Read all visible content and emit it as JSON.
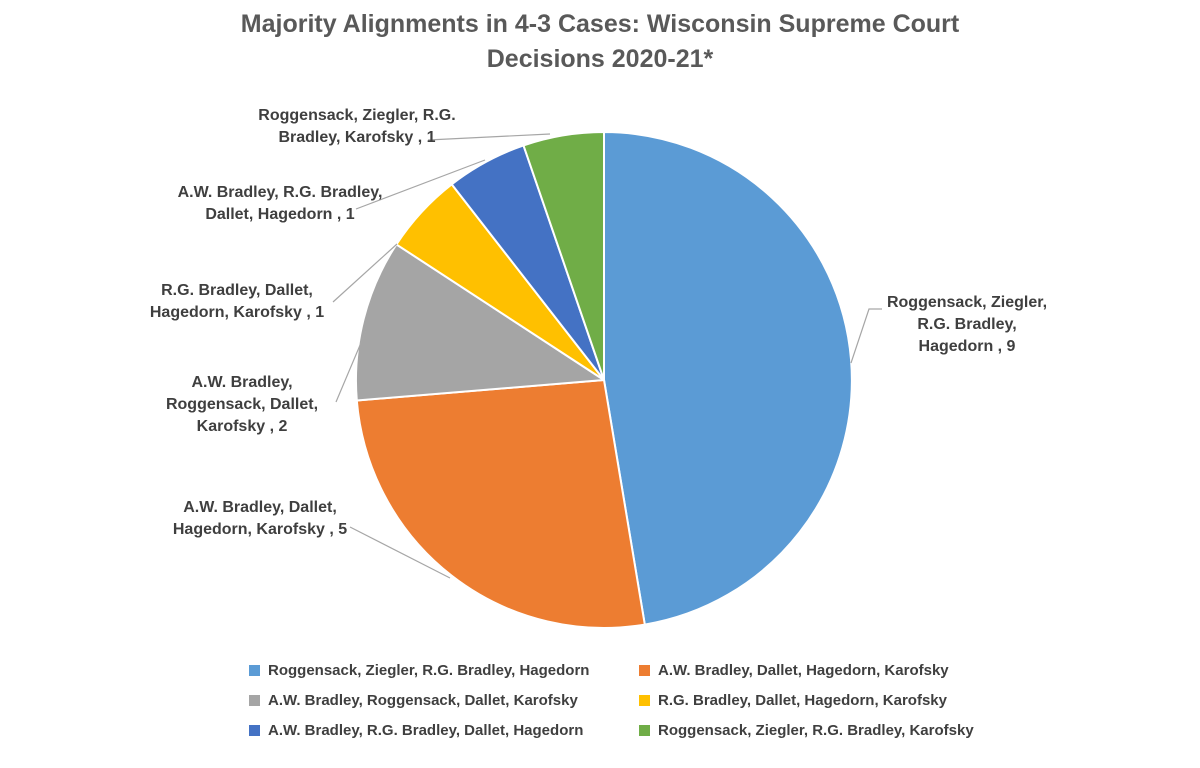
{
  "title": {
    "text": "Majority Alignments in 4-3 Cases: Wisconsin Supreme Court\nDecisions 2020-21*"
  },
  "chart_data": {
    "type": "pie",
    "title": "Majority Alignments in 4-3 Cases: Wisconsin Supreme Court Decisions 2020-21*",
    "total": 19,
    "start_angle_deg": 0,
    "direction": "clockwise",
    "legend_position": "bottom",
    "slices": [
      {
        "label": "Roggensack, Ziegler, R.G. Bradley, Hagedorn",
        "value": 9,
        "color": "#5B9BD5",
        "callout": "Roggensack, Ziegler,\nR.G. Bradley,\nHagedorn , 9"
      },
      {
        "label": "A.W. Bradley, Dallet, Hagedorn, Karofsky",
        "value": 5,
        "color": "#ED7D31",
        "callout": "A.W. Bradley, Dallet,\nHagedorn, Karofsky , 5"
      },
      {
        "label": "A.W. Bradley, Roggensack, Dallet, Karofsky",
        "value": 2,
        "color": "#A5A5A5",
        "callout": "A.W. Bradley,\nRoggensack, Dallet,\nKarofsky , 2"
      },
      {
        "label": "R.G. Bradley, Dallet, Hagedorn, Karofsky",
        "value": 1,
        "color": "#FFC000",
        "callout": "R.G. Bradley, Dallet,\nHagedorn, Karofsky , 1"
      },
      {
        "label": "A.W. Bradley, R.G. Bradley, Dallet, Hagedorn",
        "value": 1,
        "color": "#4472C4",
        "callout": "A.W. Bradley, R.G. Bradley,\nDallet, Hagedorn , 1"
      },
      {
        "label": "Roggensack, Ziegler, R.G. Bradley, Karofsky",
        "value": 1,
        "color": "#70AD47",
        "callout": "Roggensack, Ziegler, R.G.\nBradley, Karofsky , 1"
      }
    ]
  },
  "colors": {
    "bg": "#FFFFFF",
    "title_color": "#595959",
    "label_color": "#3F3F3F",
    "leader_color": "#A6A6A6"
  }
}
